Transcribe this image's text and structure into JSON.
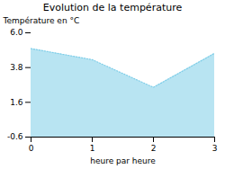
{
  "chart_data": {
    "type": "area",
    "title": "Evolution de la température",
    "xlabel": "heure par heure",
    "ylabel": "Température en °C",
    "x": [
      0,
      1,
      2,
      3
    ],
    "values": [
      5.0,
      4.3,
      2.55,
      4.7
    ],
    "color": "#7dcde8",
    "line_style": "dotted",
    "xlim": [
      0,
      3
    ],
    "ylim": [
      -0.6,
      6.0
    ],
    "xticks": [
      0,
      1,
      2,
      3
    ],
    "yticks": [
      -0.6,
      1.6,
      3.8,
      {
        "value": 6.0,
        "label": "6.0"
      }
    ]
  }
}
